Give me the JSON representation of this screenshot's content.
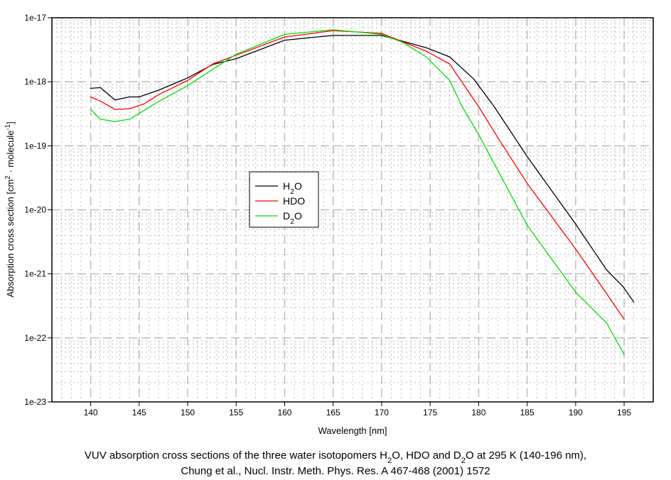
{
  "chart_data": {
    "type": "line",
    "title": "",
    "xlabel": "Wavelength [nm]",
    "ylabel_parts": [
      {
        "t": "Absorption cross section [cm"
      },
      {
        "t": "2",
        "sup": true
      },
      {
        "t": " · molecule"
      },
      {
        "t": "-1",
        "sup": true
      },
      {
        "t": "]"
      }
    ],
    "xlim": [
      136,
      198
    ],
    "ylim": [
      1e-23,
      1e-17
    ],
    "yscale": "log",
    "x_ticks": [
      140,
      145,
      150,
      155,
      160,
      165,
      170,
      175,
      180,
      185,
      190,
      195
    ],
    "y_ticks": [
      {
        "v": 1e-17,
        "label": "1e-17"
      },
      {
        "v": 1e-18,
        "label": "1e-18"
      },
      {
        "v": 1e-19,
        "label": "1e-19"
      },
      {
        "v": 1e-20,
        "label": "1e-20"
      },
      {
        "v": 1e-21,
        "label": "1e-21"
      },
      {
        "v": 1e-22,
        "label": "1e-22"
      },
      {
        "v": 1e-23,
        "label": "1e-23"
      }
    ],
    "grid": true,
    "legend_position": "center-left",
    "series": [
      {
        "name_parts": [
          {
            "t": "H"
          },
          {
            "t": "2",
            "sub": true
          },
          {
            "t": "O"
          }
        ],
        "color": "#000000",
        "x": [
          140,
          141,
          142.5,
          144,
          145,
          147,
          150,
          152.6,
          155,
          160,
          165,
          170,
          174.6,
          177,
          179.5,
          181.6,
          185,
          190,
          193.2,
          194.9,
          196
        ],
        "y": [
          7.9e-19,
          8.1e-19,
          5.2e-19,
          5.8e-19,
          5.8e-19,
          7.4e-19,
          1.15e-18,
          1.87e-18,
          2.3e-18,
          4.46e-18,
          5.3e-18,
          5.3e-18,
          3.4e-18,
          2.45e-18,
          1.1e-18,
          4.1e-19,
          6.8e-20,
          6e-21,
          1.15e-21,
          6.3e-22,
          3.6e-22
        ]
      },
      {
        "name_parts": [
          {
            "t": "HDO"
          }
        ],
        "color": "#ff0000",
        "x": [
          140,
          141,
          142.5,
          144,
          145.5,
          147,
          150,
          152.6,
          155,
          160,
          165,
          170,
          174.6,
          177,
          180,
          181.9,
          185,
          190,
          193.2,
          195
        ],
        "y": [
          5.8e-19,
          5e-19,
          3.7e-19,
          3.8e-19,
          4.5e-19,
          6.3e-19,
          1.05e-18,
          1.9e-18,
          2.6e-18,
          5e-18,
          6.3e-18,
          5.7e-18,
          3e-18,
          1.9e-18,
          4.1e-19,
          1.4e-19,
          2.6e-20,
          2.45e-21,
          4.9e-22,
          1.95e-22
        ]
      },
      {
        "name_parts": [
          {
            "t": "D"
          },
          {
            "t": "2",
            "sub": true
          },
          {
            "t": "O"
          }
        ],
        "color": "#00e000",
        "x": [
          140,
          141,
          142.5,
          144,
          145,
          147,
          150,
          155,
          160,
          165,
          170,
          172.2,
          174.6,
          177,
          178.3,
          180,
          185,
          190,
          193.2,
          195
        ],
        "y": [
          3.7e-19,
          2.6e-19,
          2.4e-19,
          2.6e-19,
          3.2e-19,
          4.9e-19,
          8.7e-19,
          2.7e-18,
          5.5e-18,
          6.5e-18,
          5.5e-18,
          4.1e-18,
          2.45e-18,
          1.05e-18,
          4.1e-19,
          1.5e-19,
          5.75e-21,
          5.2e-22,
          1.7e-22,
          5.5e-23
        ]
      }
    ]
  },
  "caption": {
    "line1": [
      {
        "t": "VUV absorption cross sections of the three water isotopomers H"
      },
      {
        "t": "2",
        "sub": true
      },
      {
        "t": "O, HDO and D"
      },
      {
        "t": "2",
        "sub": true
      },
      {
        "t": "O at 295 K (140-196 nm),"
      }
    ],
    "line2": [
      {
        "t": "Chung et al., Nucl. Instr. Meth. Phys. Res. A 467-468 (2001) 1572"
      }
    ]
  }
}
